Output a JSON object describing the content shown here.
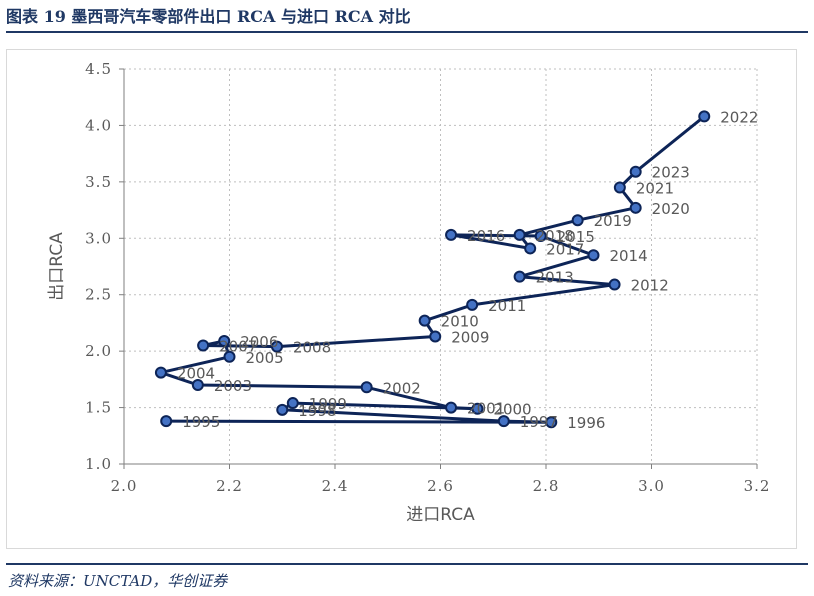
{
  "header": {
    "title": "图表 19   墨西哥汽车零部件出口 RCA 与进口 RCA 对比"
  },
  "footer": {
    "source": "资料来源：UNCTAD，华创证券"
  },
  "colors": {
    "brand": "#1f3864",
    "line": "#0d2457",
    "marker_fill": "#4472c4",
    "grid": "#bfbfbf",
    "text": "#595959"
  },
  "chart_data": {
    "type": "scatter",
    "connected": true,
    "title": "",
    "xlabel": "进口RCA",
    "ylabel": "出口RCA",
    "xlim": [
      2.0,
      3.2
    ],
    "ylim": [
      1.0,
      4.5
    ],
    "xticks": [
      "2.0",
      "2.2",
      "2.4",
      "2.6",
      "2.8",
      "3.0",
      "3.2"
    ],
    "yticks": [
      "1.0",
      "1.5",
      "2.0",
      "2.5",
      "3.0",
      "3.5",
      "4.0",
      "4.5"
    ],
    "grid": "dotted",
    "legend": "none",
    "points": [
      {
        "label": "1995",
        "x": 2.08,
        "y": 1.38
      },
      {
        "label": "1996",
        "x": 2.81,
        "y": 1.37
      },
      {
        "label": "1997",
        "x": 2.72,
        "y": 1.38
      },
      {
        "label": "1998",
        "x": 2.3,
        "y": 1.48
      },
      {
        "label": "1999",
        "x": 2.32,
        "y": 1.54
      },
      {
        "label": "2000",
        "x": 2.67,
        "y": 1.49
      },
      {
        "label": "2001",
        "x": 2.62,
        "y": 1.5
      },
      {
        "label": "2002",
        "x": 2.46,
        "y": 1.68
      },
      {
        "label": "2003",
        "x": 2.14,
        "y": 1.7
      },
      {
        "label": "2004",
        "x": 2.07,
        "y": 1.81
      },
      {
        "label": "2005",
        "x": 2.2,
        "y": 1.95
      },
      {
        "label": "2006",
        "x": 2.19,
        "y": 2.09
      },
      {
        "label": "2007",
        "x": 2.15,
        "y": 2.05
      },
      {
        "label": "2008",
        "x": 2.29,
        "y": 2.04
      },
      {
        "label": "2009",
        "x": 2.59,
        "y": 2.13
      },
      {
        "label": "2010",
        "x": 2.57,
        "y": 2.27
      },
      {
        "label": "2011",
        "x": 2.66,
        "y": 2.41
      },
      {
        "label": "2012",
        "x": 2.93,
        "y": 2.59
      },
      {
        "label": "2013",
        "x": 2.75,
        "y": 2.66
      },
      {
        "label": "2014",
        "x": 2.89,
        "y": 2.85
      },
      {
        "label": "2015",
        "x": 2.79,
        "y": 3.02
      },
      {
        "label": "2016",
        "x": 2.62,
        "y": 3.03
      },
      {
        "label": "2017",
        "x": 2.77,
        "y": 2.91
      },
      {
        "label": "2018",
        "x": 2.75,
        "y": 3.03
      },
      {
        "label": "2019",
        "x": 2.86,
        "y": 3.16
      },
      {
        "label": "2020",
        "x": 2.97,
        "y": 3.27
      },
      {
        "label": "2021",
        "x": 2.94,
        "y": 3.45
      },
      {
        "label": "2023",
        "x": 2.97,
        "y": 3.59
      },
      {
        "label": "2022",
        "x": 3.1,
        "y": 4.08
      }
    ]
  }
}
